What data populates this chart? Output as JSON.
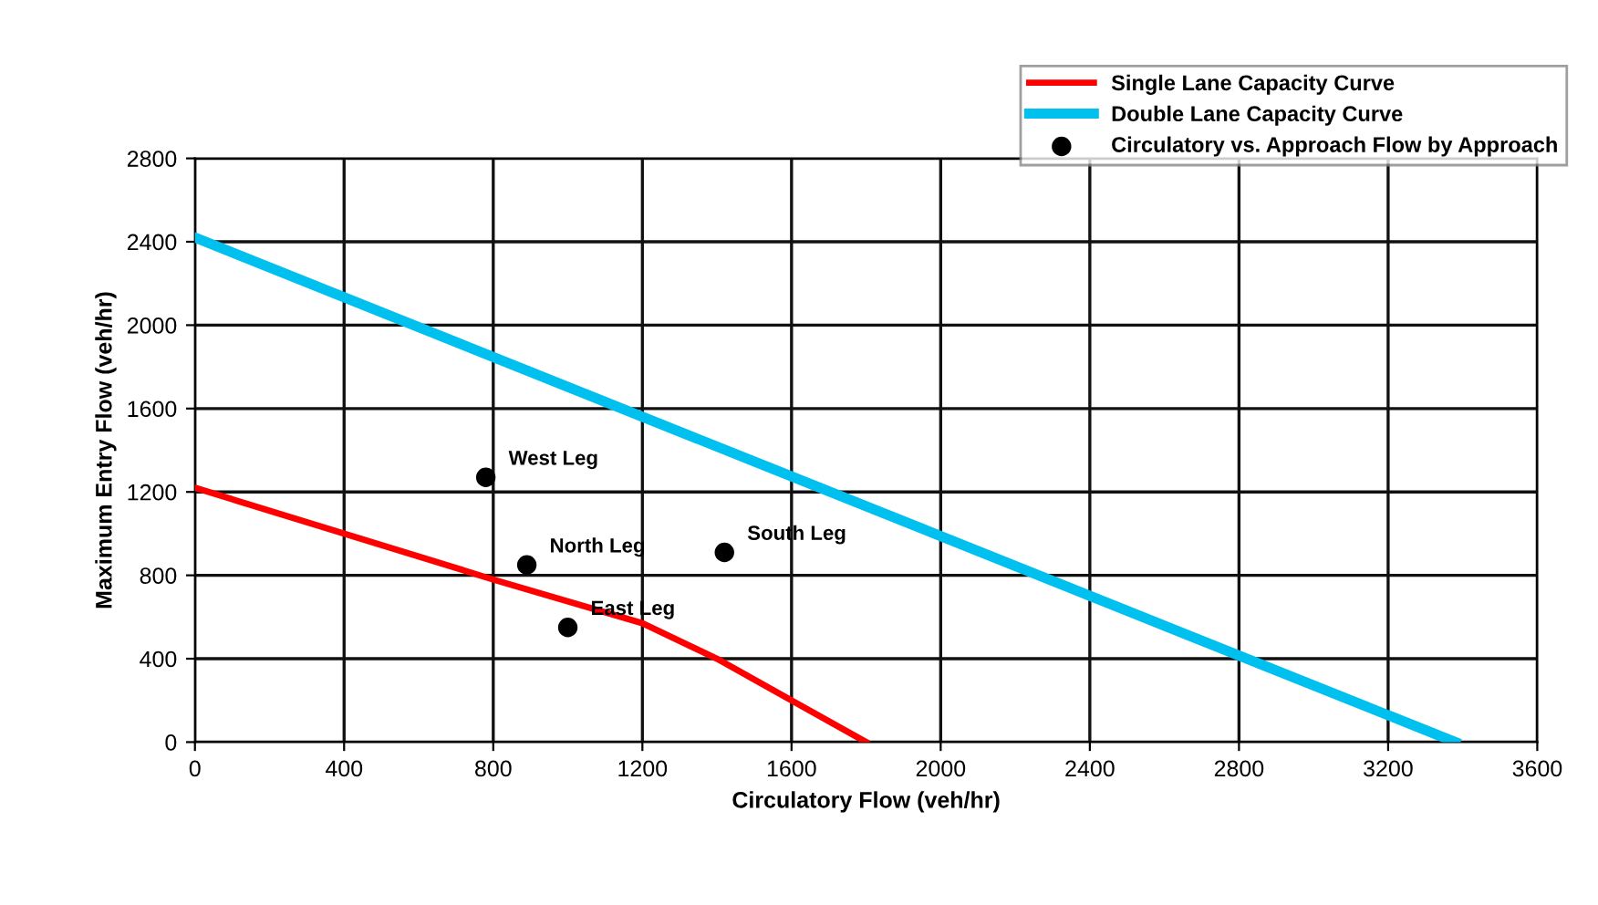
{
  "chart_data": {
    "type": "line",
    "xlabel": "Circulatory Flow (veh/hr)",
    "ylabel": "Maximum Entry Flow (veh/hr)",
    "xlim": [
      0,
      3600
    ],
    "xticks": [
      0,
      400,
      800,
      1200,
      1600,
      2000,
      2400,
      2800,
      3200,
      3600
    ],
    "ylim": [
      0,
      2800
    ],
    "yticks": [
      0,
      400,
      800,
      1200,
      1600,
      2000,
      2400,
      2800
    ],
    "grid": true,
    "legend": "top right",
    "series": [
      {
        "name": "Single Lane Capacity Curve",
        "color": "#ff0000",
        "x": [
          0,
          800,
          1200,
          1400,
          1600,
          1800
        ],
        "values": [
          1220,
          780,
          570,
          400,
          200,
          0
        ]
      },
      {
        "name": "Double Lane Capacity Curve",
        "color": "#00c0f0",
        "x": [
          0,
          3380
        ],
        "values": [
          2420,
          0
        ]
      },
      {
        "name": "Circulatory vs. Approach Flow by Approach",
        "type": "scatter",
        "color": "#000000",
        "marker": "circle",
        "x": [
          780,
          890,
          1420,
          1000
        ],
        "values": [
          1270,
          850,
          910,
          550
        ]
      }
    ],
    "annotations": [
      {
        "text": "West Leg",
        "x": 780,
        "y": 1270
      },
      {
        "text": "North Leg",
        "x": 890,
        "y": 850
      },
      {
        "text": "South Leg",
        "x": 1420,
        "y": 910
      },
      {
        "text": "East Leg",
        "x": 1000,
        "y": 550
      }
    ]
  }
}
